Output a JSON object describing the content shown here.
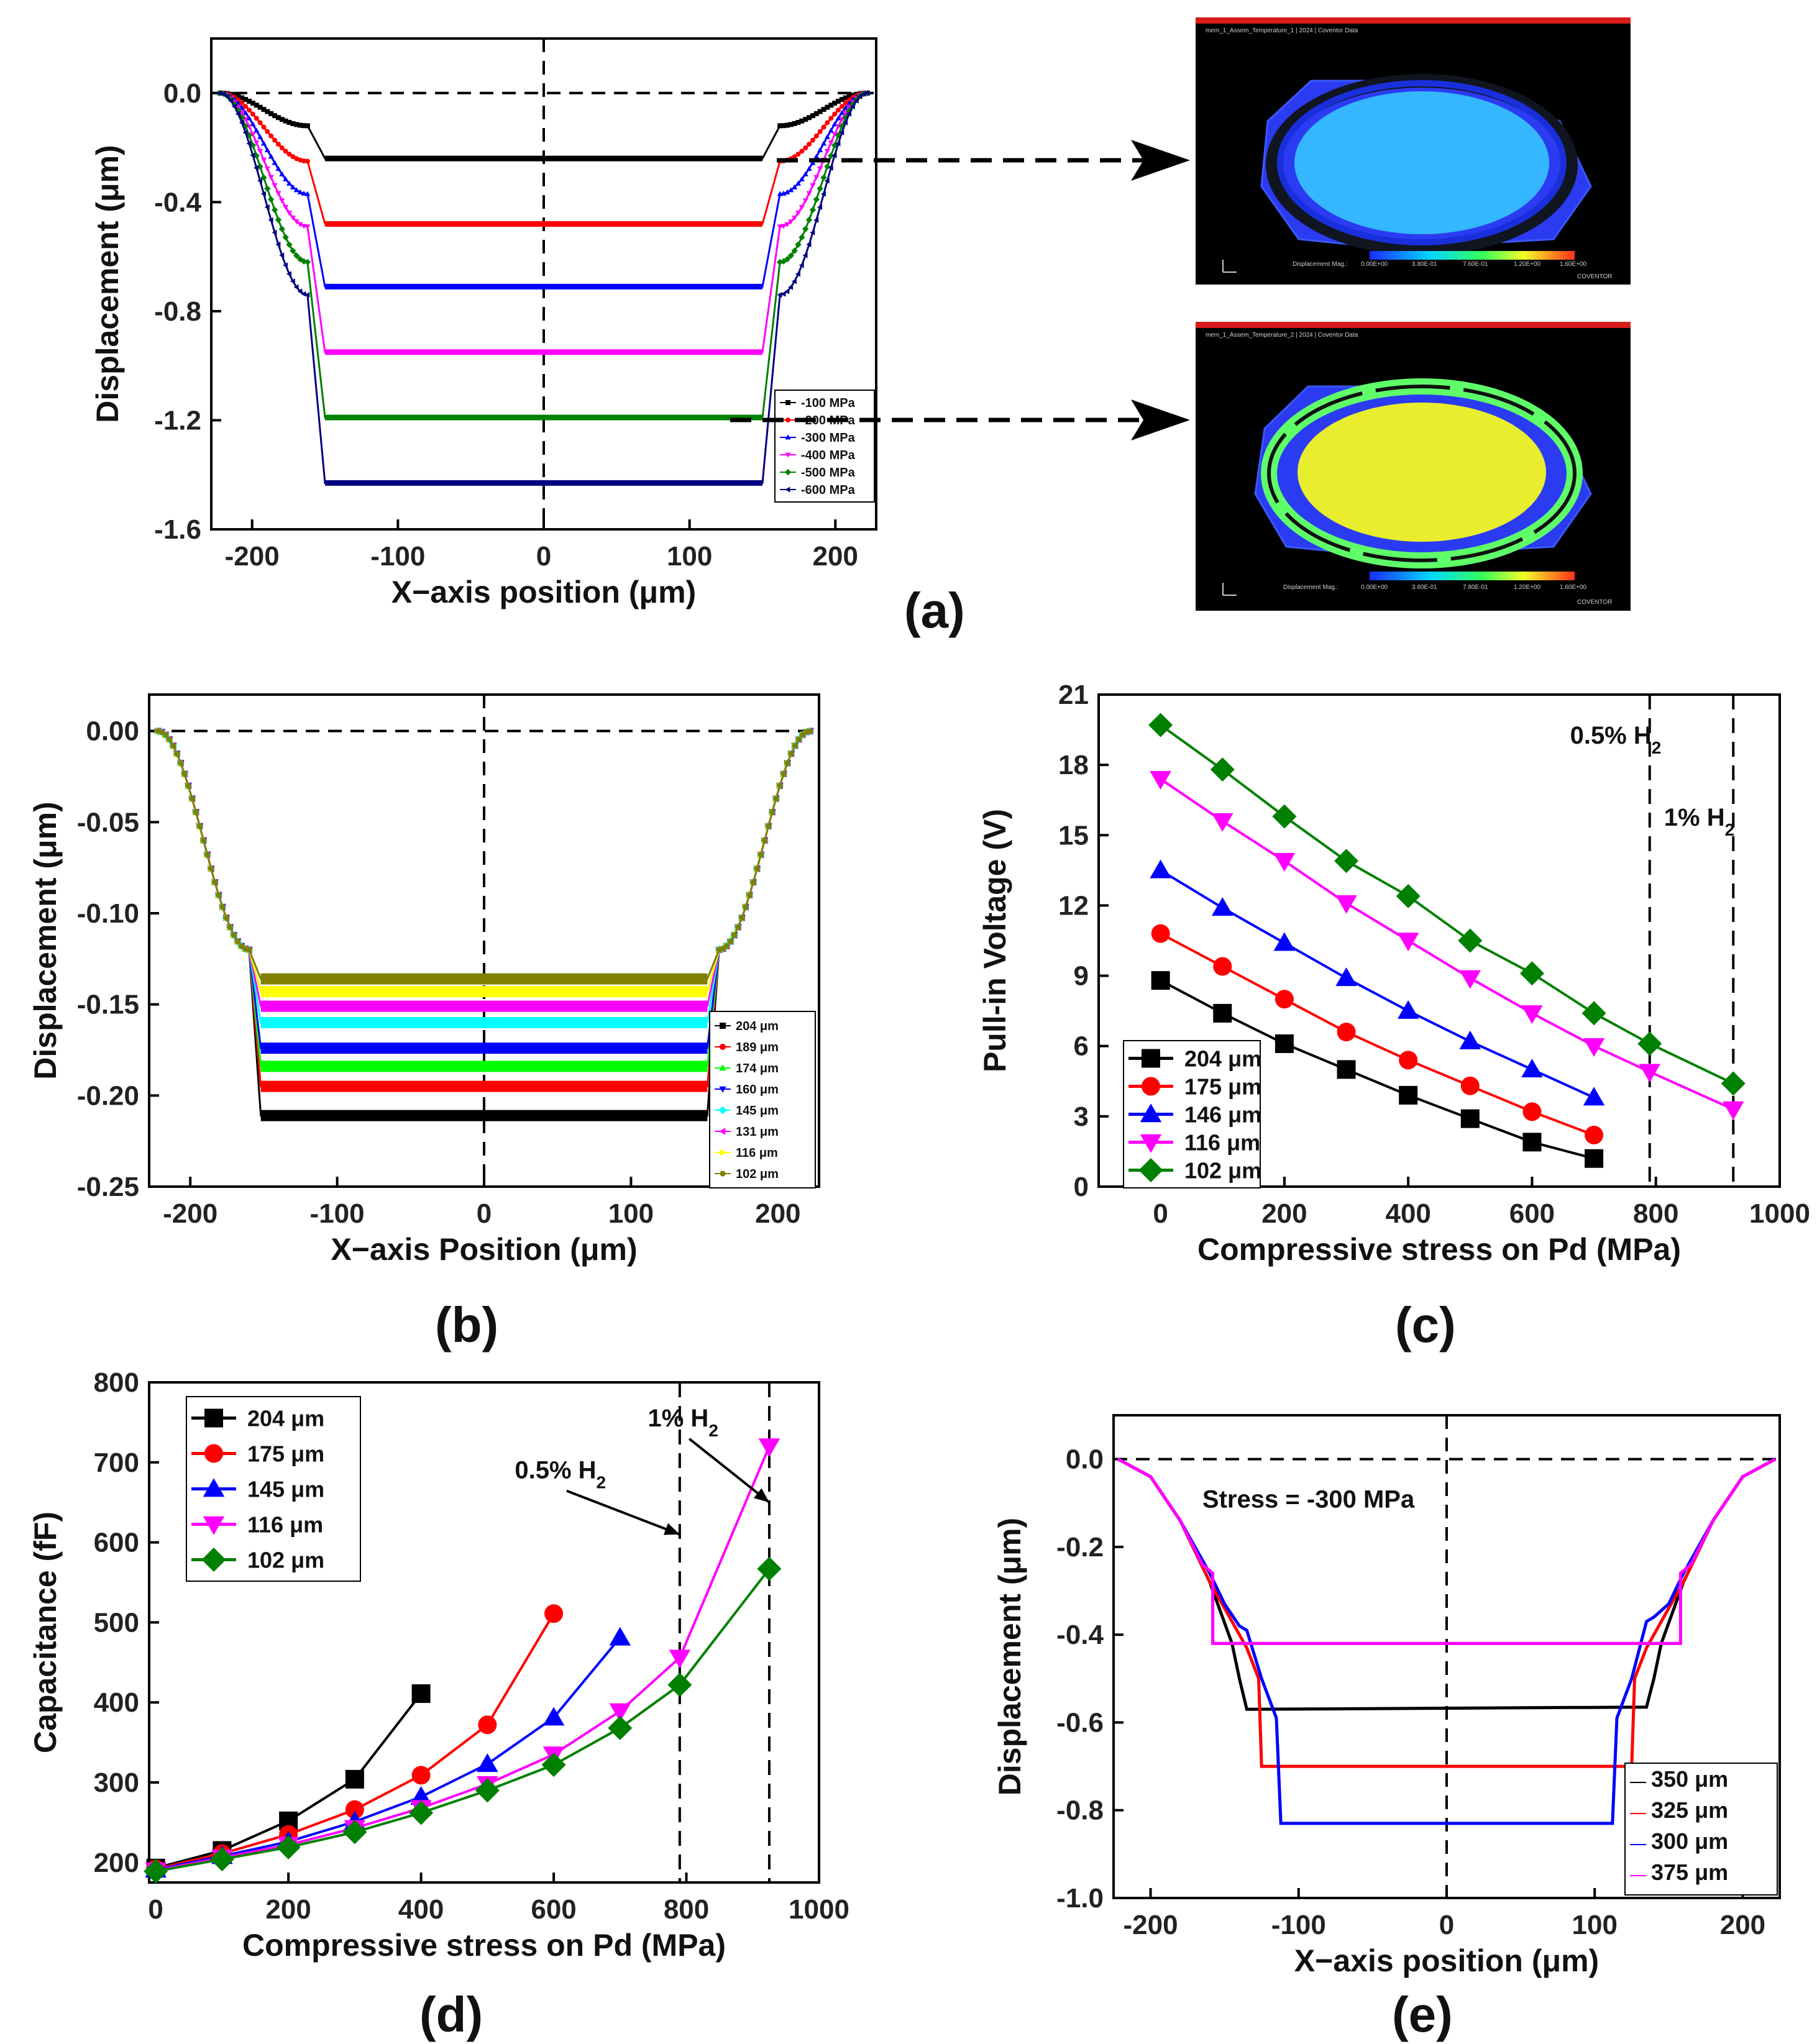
{
  "figure": {
    "panel_labels": {
      "a": "(a)",
      "b": "(b)",
      "c": "(c)",
      "d": "(d)",
      "e": "(e)"
    }
  },
  "simulations": [
    {
      "legend": "Displacement Mag.: ",
      "ticks": [
        "0.00E+00",
        "3.80E-01",
        "7.60E-01",
        "1.20E+00",
        "1.60E+00"
      ],
      "brand": "COVENTOR",
      "plate_color": "#35b7ff"
    },
    {
      "legend": "Displacement Mag.: ",
      "ticks": [
        "0.00E+00",
        "3.60E-01",
        "7.80E-01",
        "1.20E+00",
        "1.60E+00"
      ],
      "brand": "COVENTOR",
      "plate_color": "#e8ee2e"
    }
  ],
  "chart_data": [
    {
      "id": "a",
      "type": "line",
      "xlabel": "X−axis position (μm)",
      "ylabel": "Displacement (μm)",
      "xlim": [
        -228,
        228
      ],
      "ylim": [
        -1.6,
        0.2
      ],
      "xticks": [
        -200,
        -100,
        0,
        100,
        200
      ],
      "yticks": [
        0.0,
        -0.4,
        -0.8,
        -1.2,
        -1.6
      ],
      "ytick_labels": [
        "0.0",
        "-0.4",
        "-0.8",
        "-1.2",
        "-1.6"
      ],
      "reference": {
        "y": 0,
        "x": 0
      },
      "edge_x": 222,
      "plate_x": 150,
      "spring_x": 162,
      "series": [
        {
          "name": "-100 MPa",
          "color": "#000000",
          "marker": "square",
          "plate": -0.24,
          "spring": -0.12
        },
        {
          "name": "-200 MPa",
          "color": "#ff0000",
          "marker": "circle",
          "plate": -0.48,
          "spring": -0.25
        },
        {
          "name": "-300 MPa",
          "color": "#0000ff",
          "marker": "triangle-up",
          "plate": -0.71,
          "spring": -0.37
        },
        {
          "name": "-400 MPa",
          "color": "#ff00ff",
          "marker": "triangle-down",
          "plate": -0.95,
          "spring": -0.49
        },
        {
          "name": "-500 MPa",
          "color": "#008000",
          "marker": "diamond",
          "plate": -1.19,
          "spring": -0.62
        },
        {
          "name": "-600 MPa",
          "color": "#000080",
          "marker": "triangle-left",
          "plate": -1.43,
          "spring": -0.74
        }
      ]
    },
    {
      "id": "b",
      "type": "line",
      "xlabel": "X−axis Position (μm)",
      "ylabel": "Displacement (μm)",
      "xlim": [
        -228,
        228
      ],
      "ylim": [
        -0.25,
        0.02
      ],
      "xticks": [
        -200,
        -100,
        0,
        100,
        200
      ],
      "yticks": [
        0.0,
        -0.05,
        -0.1,
        -0.15,
        -0.2,
        -0.25
      ],
      "ytick_labels": [
        "0.00",
        "-0.05",
        "-0.10",
        "-0.15",
        "-0.20",
        "-0.25"
      ],
      "reference": {
        "y": 0,
        "x": 0
      },
      "edge_x": 222,
      "plate_x": 152,
      "spring_x": 160,
      "spring_y": -0.12,
      "series": [
        {
          "name": "204 μm",
          "color": "#000000",
          "marker": "square",
          "plate": -0.211
        },
        {
          "name": "189 μm",
          "color": "#ff0000",
          "marker": "circle",
          "plate": -0.195
        },
        {
          "name": "174 μm",
          "color": "#00ff00",
          "marker": "triangle-up",
          "plate": -0.184
        },
        {
          "name": "160 μm",
          "color": "#0000ff",
          "marker": "triangle-down",
          "plate": -0.174
        },
        {
          "name": "145 μm",
          "color": "#00ffff",
          "marker": "diamond",
          "plate": -0.16
        },
        {
          "name": "131 μm",
          "color": "#ff00ff",
          "marker": "triangle-left",
          "plate": -0.151
        },
        {
          "name": "116 μm",
          "color": "#ffff00",
          "marker": "triangle-right",
          "plate": -0.143
        },
        {
          "name": "102 μm",
          "color": "#808000",
          "marker": "hexagon",
          "plate": -0.136
        }
      ]
    },
    {
      "id": "c",
      "type": "line",
      "xlabel": "Compressive stress on Pd (MPa)",
      "ylabel": "Pull-in Voltage (V)",
      "xlim": [
        -100,
        1000
      ],
      "ylim": [
        0,
        21
      ],
      "xticks": [
        0,
        200,
        400,
        600,
        800,
        1000
      ],
      "yticks": [
        0,
        3,
        6,
        9,
        12,
        15,
        18,
        21
      ],
      "ytick_labels": [
        "0",
        "3",
        "6",
        "9",
        "12",
        "15",
        "18",
        "21"
      ],
      "vlines": [
        790,
        925
      ],
      "annotations": [
        {
          "text": "0.5% H",
          "sub": "2",
          "x": 735,
          "y": 18.9
        },
        {
          "text": "1% H",
          "sub": "2",
          "x": 870,
          "y": 15.4
        }
      ],
      "series": [
        {
          "name": "204 μm",
          "color": "#000000",
          "marker": "square",
          "x": [
            0,
            100,
            200,
            300,
            400,
            500,
            600,
            700
          ],
          "y": [
            8.8,
            7.4,
            6.1,
            5.0,
            3.9,
            2.9,
            1.9,
            1.2
          ]
        },
        {
          "name": "175 μm",
          "color": "#ff0000",
          "marker": "circle",
          "x": [
            0,
            100,
            200,
            300,
            400,
            500,
            600,
            700
          ],
          "y": [
            10.8,
            9.4,
            8.0,
            6.6,
            5.4,
            4.3,
            3.2,
            2.2
          ]
        },
        {
          "name": "146 μm",
          "color": "#0000ff",
          "marker": "triangle-up",
          "x": [
            0,
            100,
            200,
            300,
            400,
            500,
            600,
            700
          ],
          "y": [
            13.5,
            11.9,
            10.4,
            8.9,
            7.5,
            6.2,
            5.0,
            3.8
          ]
        },
        {
          "name": "116 μm",
          "color": "#ff00ff",
          "marker": "triangle-down",
          "x": [
            0,
            100,
            200,
            300,
            400,
            500,
            600,
            700,
            790,
            925
          ],
          "y": [
            17.4,
            15.6,
            13.9,
            12.1,
            10.5,
            8.9,
            7.4,
            6.0,
            4.9,
            3.3
          ]
        },
        {
          "name": "102 μm",
          "color": "#008000",
          "marker": "diamond",
          "x": [
            0,
            100,
            200,
            300,
            400,
            500,
            600,
            700,
            790,
            925
          ],
          "y": [
            19.7,
            17.8,
            15.8,
            13.9,
            12.4,
            10.5,
            9.1,
            7.4,
            6.1,
            4.4
          ]
        }
      ]
    },
    {
      "id": "d",
      "type": "line",
      "xlabel": "Compressive stress on Pd (MPa)",
      "ylabel": "Capacitance (fF)",
      "xlim": [
        -10,
        1000
      ],
      "ylim": [
        175,
        800
      ],
      "xticks": [
        0,
        200,
        400,
        600,
        800,
        1000
      ],
      "yticks": [
        200,
        300,
        400,
        500,
        600,
        700,
        800
      ],
      "ytick_labels": [
        "200",
        "300",
        "400",
        "500",
        "600",
        "700",
        "800"
      ],
      "vlines": [
        790,
        925
      ],
      "annotations": [
        {
          "text": "0.5% H",
          "sub": "2",
          "x": 610,
          "y": 680,
          "arrow_to": [
            790,
            610
          ]
        },
        {
          "text": "1% H",
          "sub": "2",
          "x": 795,
          "y": 745,
          "arrow_to": [
            925,
            650
          ]
        }
      ],
      "series": [
        {
          "name": "204 μm",
          "color": "#000000",
          "marker": "square",
          "x": [
            0,
            100,
            200,
            300,
            400
          ],
          "y": [
            193,
            215,
            252,
            304,
            411
          ]
        },
        {
          "name": "175 μm",
          "color": "#ff0000",
          "marker": "circle",
          "x": [
            0,
            100,
            200,
            300,
            400,
            500,
            600
          ],
          "y": [
            192,
            211,
            235,
            266,
            309,
            372,
            511
          ]
        },
        {
          "name": "145 μm",
          "color": "#0000ff",
          "marker": "triangle-up",
          "x": [
            0,
            100,
            200,
            300,
            400,
            500,
            600,
            700
          ],
          "y": [
            191,
            208,
            226,
            251,
            282,
            323,
            381,
            481
          ]
        },
        {
          "name": "116 μm",
          "color": "#ff00ff",
          "marker": "triangle-down",
          "x": [
            0,
            100,
            200,
            300,
            400,
            500,
            600,
            700,
            790,
            925
          ],
          "y": [
            190,
            206,
            222,
            243,
            268,
            298,
            335,
            389,
            456,
            720
          ]
        },
        {
          "name": "102 μm",
          "color": "#008000",
          "marker": "diamond",
          "x": [
            0,
            100,
            200,
            300,
            400,
            500,
            600,
            700,
            790,
            925
          ],
          "y": [
            189,
            204,
            219,
            238,
            262,
            290,
            322,
            368,
            422,
            567
          ]
        }
      ]
    },
    {
      "id": "e",
      "type": "line",
      "xlabel": "X−axis position (μm)",
      "ylabel": "Displacement (μm)",
      "xlim": [
        -225,
        225
      ],
      "ylim": [
        -1.0,
        0.1
      ],
      "xticks": [
        -200,
        -100,
        0,
        100,
        200
      ],
      "yticks": [
        0.0,
        -0.2,
        -0.4,
        -0.6,
        -0.8,
        -1.0
      ],
      "ytick_labels": [
        "0.0",
        "-0.2",
        "-0.4",
        "-0.6",
        "-0.8",
        "-1.0"
      ],
      "reference": {
        "y": 0,
        "x": 0
      },
      "annotations": [
        {
          "text": "Stress = -300 MPa",
          "x": -165,
          "y": -0.11
        }
      ],
      "series": [
        {
          "name": "350 μm",
          "color": "#000000",
          "x": [
            -222,
            -200,
            -180,
            -160,
            -145,
            -140,
            -135,
            135,
            140,
            145,
            160,
            180,
            200,
            222
          ],
          "y": [
            0,
            -0.04,
            -0.14,
            -0.28,
            -0.42,
            -0.5,
            -0.57,
            -0.565,
            -0.5,
            -0.42,
            -0.28,
            -0.14,
            -0.04,
            0
          ]
        },
        {
          "name": "325 μm",
          "color": "#ff0000",
          "x": [
            -222,
            -200,
            -180,
            -160,
            -145,
            -135,
            -127,
            -125,
            125,
            127,
            135,
            145,
            160,
            180,
            200,
            222
          ],
          "y": [
            0,
            -0.04,
            -0.14,
            -0.28,
            -0.37,
            -0.43,
            -0.5,
            -0.7,
            -0.7,
            -0.5,
            -0.43,
            -0.37,
            -0.28,
            -0.14,
            -0.04,
            0
          ]
        },
        {
          "name": "300 μm",
          "color": "#0000ff",
          "x": [
            -222,
            -200,
            -180,
            -160,
            -150,
            -140,
            -135,
            -125,
            -115,
            -112,
            112,
            115,
            125,
            135,
            140,
            150,
            160,
            180,
            200,
            222
          ],
          "y": [
            0,
            -0.04,
            -0.14,
            -0.26,
            -0.33,
            -0.38,
            -0.39,
            -0.5,
            -0.59,
            -0.83,
            -0.83,
            -0.59,
            -0.5,
            -0.37,
            -0.36,
            -0.33,
            -0.26,
            -0.14,
            -0.04,
            0
          ]
        },
        {
          "name": "375 μm",
          "color": "#ff00ff",
          "x": [
            -222,
            -200,
            -180,
            -165,
            -158,
            -158,
            158,
            158,
            165,
            180,
            200,
            222
          ],
          "y": [
            0,
            -0.04,
            -0.14,
            -0.24,
            -0.26,
            -0.42,
            -0.42,
            -0.26,
            -0.24,
            -0.14,
            -0.04,
            0
          ]
        }
      ]
    }
  ]
}
